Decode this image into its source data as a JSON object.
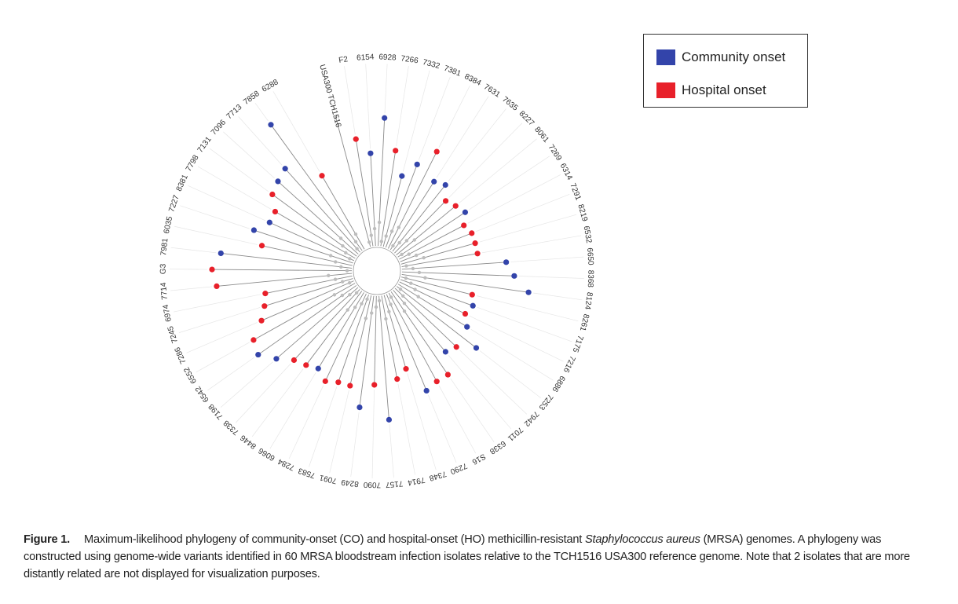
{
  "legend": {
    "community": {
      "label": "Community onset",
      "color": "#3344aa"
    },
    "hospital": {
      "label": "Hospital onset",
      "color": "#e8202a"
    }
  },
  "caption": {
    "label": "Figure 1.",
    "text_before": "Maximum-likelihood phylogeny of community-onset (CO) and hospital-onset (HO) methicillin-resistant ",
    "species": "Staphylococcus aureus",
    "text_after": " (MRSA) genomes. A phylogeny was constructed using genome-wide variants identified in 60 MRSA bloodstream infection isolates relative to the TCH1516 USA300 reference genome. Note that 2 isolates that are more distantly related are not displayed for visualization purposes."
  },
  "tree": {
    "tips": [
      {
        "label": "USA300 TCH1516",
        "onset": null
      },
      {
        "label": "F2",
        "onset": "hospital"
      },
      {
        "label": "6154",
        "onset": "community"
      },
      {
        "label": "6928",
        "onset": "community"
      },
      {
        "label": "7266",
        "onset": "hospital"
      },
      {
        "label": "7332",
        "onset": "community"
      },
      {
        "label": "7381",
        "onset": "community"
      },
      {
        "label": "8384",
        "onset": "hospital"
      },
      {
        "label": "7631",
        "onset": "community"
      },
      {
        "label": "7635",
        "onset": "community"
      },
      {
        "label": "8227",
        "onset": "hospital"
      },
      {
        "label": "8061",
        "onset": "hospital"
      },
      {
        "label": "7269",
        "onset": "community"
      },
      {
        "label": "6314",
        "onset": "hospital"
      },
      {
        "label": "7291",
        "onset": "hospital"
      },
      {
        "label": "8219",
        "onset": "hospital"
      },
      {
        "label": "6532",
        "onset": "hospital"
      },
      {
        "label": "6650",
        "onset": "community"
      },
      {
        "label": "8368",
        "onset": "community"
      },
      {
        "label": "8124",
        "onset": "community"
      },
      {
        "label": "8261",
        "onset": "hospital"
      },
      {
        "label": "7175",
        "onset": "community"
      },
      {
        "label": "7216",
        "onset": "hospital"
      },
      {
        "label": "6886",
        "onset": "community"
      },
      {
        "label": "7253",
        "onset": "community"
      },
      {
        "label": "7942",
        "onset": "hospital"
      },
      {
        "label": "7011",
        "onset": "community"
      },
      {
        "label": "6338",
        "onset": "hospital"
      },
      {
        "label": "S16",
        "onset": "hospital"
      },
      {
        "label": "7290",
        "onset": "community"
      },
      {
        "label": "7348",
        "onset": "hospital"
      },
      {
        "label": "7914",
        "onset": "hospital"
      },
      {
        "label": "7157",
        "onset": "community"
      },
      {
        "label": "7090",
        "onset": "hospital"
      },
      {
        "label": "8249",
        "onset": "community"
      },
      {
        "label": "7091",
        "onset": "hospital"
      },
      {
        "label": "7583",
        "onset": "hospital"
      },
      {
        "label": "7284",
        "onset": "hospital"
      },
      {
        "label": "6066",
        "onset": "community"
      },
      {
        "label": "8446",
        "onset": "hospital"
      },
      {
        "label": "7338",
        "onset": "hospital"
      },
      {
        "label": "7198",
        "onset": "community"
      },
      {
        "label": "6542",
        "onset": "community"
      },
      {
        "label": "6552",
        "onset": "hospital"
      },
      {
        "label": "7286",
        "onset": "hospital"
      },
      {
        "label": "7245",
        "onset": "hospital"
      },
      {
        "label": "6974",
        "onset": "hospital"
      },
      {
        "label": "7714",
        "onset": "hospital"
      },
      {
        "label": "G3",
        "onset": "hospital"
      },
      {
        "label": "7981",
        "onset": "community"
      },
      {
        "label": "6035",
        "onset": "hospital"
      },
      {
        "label": "7227",
        "onset": "community"
      },
      {
        "label": "8381",
        "onset": "community"
      },
      {
        "label": "7798",
        "onset": "hospital"
      },
      {
        "label": "7131",
        "onset": "hospital"
      },
      {
        "label": "7096",
        "onset": "community"
      },
      {
        "label": "7713",
        "onset": "community"
      },
      {
        "label": "7858",
        "onset": "community"
      },
      {
        "label": "6288",
        "onset": "hospital"
      }
    ]
  }
}
